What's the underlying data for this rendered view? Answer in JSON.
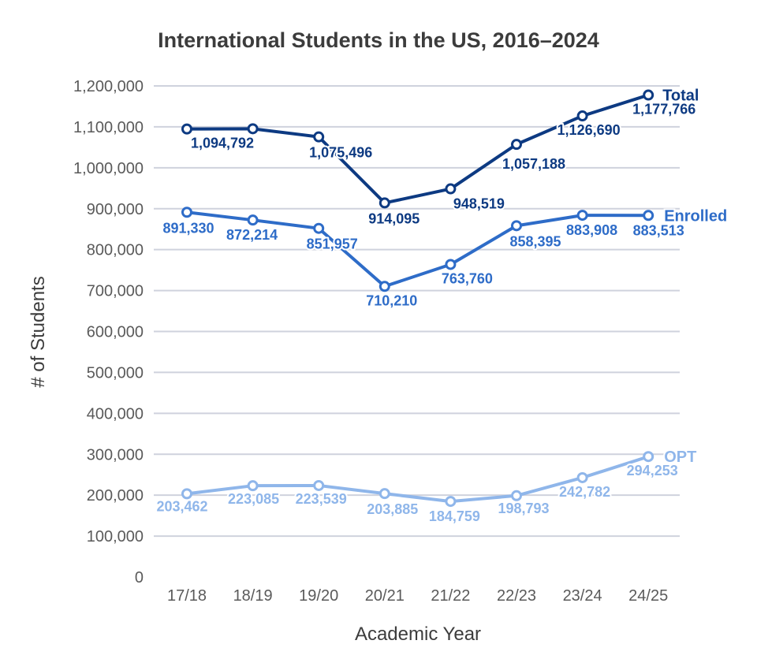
{
  "chart_data": {
    "type": "line",
    "title": "International Students in the US, 2016–2024",
    "xlabel": "Academic Year",
    "ylabel": "# of Students",
    "categories": [
      "17/18",
      "18/19",
      "19/20",
      "20/21",
      "21/22",
      "22/23",
      "23/24",
      "24/25"
    ],
    "ylim": [
      0,
      1200000
    ],
    "yticks": [
      0,
      100000,
      200000,
      300000,
      400000,
      500000,
      600000,
      700000,
      800000,
      900000,
      1000000,
      1100000,
      1200000
    ],
    "ytick_labels": [
      "0",
      "100,000",
      "200,000",
      "300,000",
      "400,000",
      "500,000",
      "600,000",
      "700,000",
      "800,000",
      "900,000",
      "1,000,000",
      "1,100,000",
      "1,200,000"
    ],
    "grid": true,
    "legend": "inline-right",
    "series": [
      {
        "name": "Total",
        "color": "#0d3a82",
        "values": [
          1094792,
          1095299,
          1075496,
          914095,
          948519,
          1057188,
          1126690,
          1177766
        ],
        "labels": [
          "1,094,792",
          "",
          "1,075,496",
          "914,095",
          "948,519",
          "1,057,188",
          "1,126,690",
          "1,177,766"
        ]
      },
      {
        "name": "Enrolled",
        "color": "#2e6cc8",
        "values": [
          891330,
          872214,
          851957,
          710210,
          763760,
          858395,
          883908,
          883513
        ],
        "labels": [
          "891,330",
          "872,214",
          "851,957",
          "710,210",
          "763,760",
          "858,395",
          "883,908",
          "883,513"
        ]
      },
      {
        "name": "OPT",
        "color": "#8fb6ea",
        "values": [
          203462,
          223085,
          223539,
          203885,
          184759,
          198793,
          242782,
          294253
        ],
        "labels": [
          "203,462",
          "223,085",
          "223,539",
          "203,885",
          "184,759",
          "198,793",
          "242,782",
          "294,253"
        ]
      }
    ]
  }
}
